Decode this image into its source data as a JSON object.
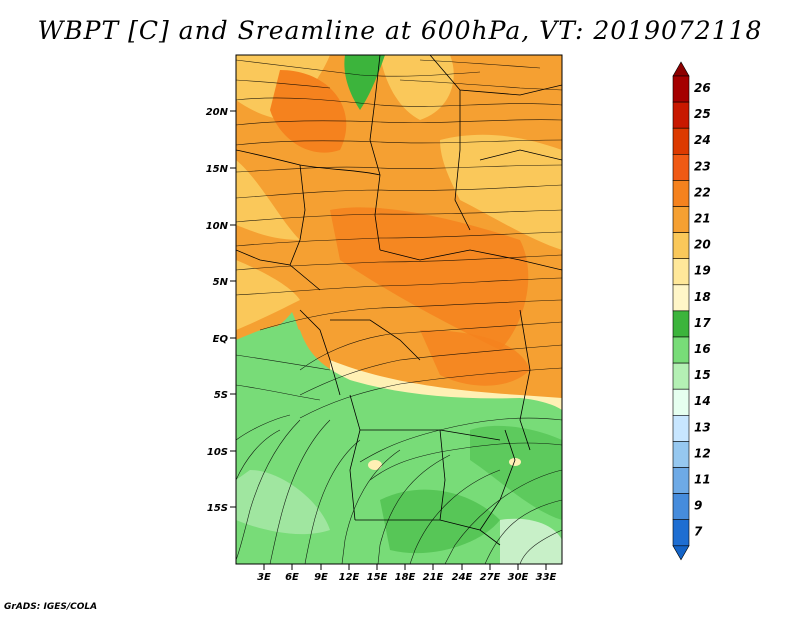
{
  "title": "WBPT [C] and Sreamline at 600hPa, VT: 2019072118",
  "footer": "GrADS: IGES/COLA",
  "map": {
    "lat_labels": [
      "20N",
      "15N",
      "10N",
      "5N",
      "EQ",
      "5S",
      "10S",
      "15S"
    ],
    "lon_labels": [
      "3E",
      "6E",
      "9E",
      "12E",
      "15E",
      "18E",
      "21E",
      "24E",
      "27E",
      "30E",
      "33E"
    ]
  },
  "colorbar": {
    "levels": [
      "26",
      "25",
      "24",
      "23",
      "22",
      "21",
      "20",
      "19",
      "18",
      "17",
      "16",
      "15",
      "14",
      "13",
      "12",
      "11",
      "9",
      "7"
    ],
    "colors": [
      "#a50000",
      "#c81800",
      "#dc3a00",
      "#f05a14",
      "#f5821e",
      "#f5a032",
      "#fac85a",
      "#ffe89a",
      "#fff6c8",
      "#3cb43c",
      "#78dc78",
      "#b4f0b4",
      "#e6fff0",
      "#c8e6ff",
      "#96c8f0",
      "#6eaae6",
      "#468cdc",
      "#1e6ed2"
    ],
    "top_color": "#8c0000",
    "bottom_color": "#1464c8"
  }
}
